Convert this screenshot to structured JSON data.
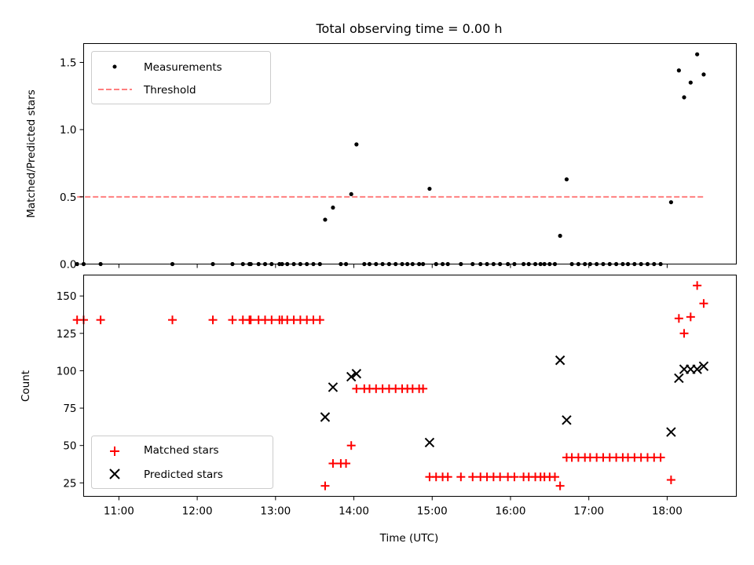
{
  "chart_data": [
    {
      "type": "scatter",
      "title": "Total observing time = 0.00 h",
      "ylabel": "Matched/Predicted stars",
      "xlabel": "",
      "xlim": [
        "10:33",
        "18:53"
      ],
      "ylim": [
        0,
        1.64
      ],
      "yticks": [
        0.0,
        0.5,
        1.0,
        1.5
      ],
      "ytick_labels": [
        "0.0",
        "0.5",
        "1.0",
        "1.5"
      ],
      "legend_position": "upper-left",
      "series": [
        {
          "name": "Measurements",
          "kind": "scatter",
          "color": "#000000",
          "marker": "dot",
          "points": [
            [
              "10:28",
              0
            ],
            [
              "10:33",
              0
            ],
            [
              "10:46",
              0
            ],
            [
              "11:41",
              0
            ],
            [
              "12:12",
              0
            ],
            [
              "12:27",
              0
            ],
            [
              "12:35",
              0
            ],
            [
              "12:40",
              0
            ],
            [
              "12:41",
              0
            ],
            [
              "12:47",
              0
            ],
            [
              "12:52",
              0
            ],
            [
              "12:57",
              0
            ],
            [
              "13:03",
              0
            ],
            [
              "13:05",
              0
            ],
            [
              "13:09",
              0
            ],
            [
              "13:14",
              0
            ],
            [
              "13:19",
              0
            ],
            [
              "13:24",
              0
            ],
            [
              "13:29",
              0
            ],
            [
              "13:34",
              0
            ],
            [
              "13:38",
              0.33
            ],
            [
              "13:44",
              0.42
            ],
            [
              "13:50",
              0
            ],
            [
              "13:54",
              0
            ],
            [
              "13:58",
              0.52
            ],
            [
              "14:02",
              0.89
            ],
            [
              "14:08",
              0
            ],
            [
              "14:12",
              0
            ],
            [
              "14:17",
              0
            ],
            [
              "14:22",
              0
            ],
            [
              "14:27",
              0
            ],
            [
              "14:32",
              0
            ],
            [
              "14:37",
              0
            ],
            [
              "14:41",
              0
            ],
            [
              "14:45",
              0
            ],
            [
              "14:50",
              0
            ],
            [
              "14:53",
              0
            ],
            [
              "14:58",
              0.56
            ],
            [
              "15:03",
              0
            ],
            [
              "15:08",
              0
            ],
            [
              "15:12",
              0
            ],
            [
              "15:22",
              0
            ],
            [
              "15:31",
              0
            ],
            [
              "15:37",
              0
            ],
            [
              "15:42",
              0
            ],
            [
              "15:47",
              0
            ],
            [
              "15:52",
              0
            ],
            [
              "15:58",
              0
            ],
            [
              "16:03",
              0
            ],
            [
              "16:10",
              0
            ],
            [
              "16:14",
              0
            ],
            [
              "16:19",
              0
            ],
            [
              "16:23",
              0
            ],
            [
              "16:26",
              0
            ],
            [
              "16:30",
              0
            ],
            [
              "16:34",
              0
            ],
            [
              "16:38",
              0.21
            ],
            [
              "16:43",
              0.63
            ],
            [
              "16:47",
              0
            ],
            [
              "16:52",
              0
            ],
            [
              "16:57",
              0
            ],
            [
              "17:01",
              0
            ],
            [
              "17:06",
              0
            ],
            [
              "17:11",
              0
            ],
            [
              "17:16",
              0
            ],
            [
              "17:21",
              0
            ],
            [
              "17:26",
              0
            ],
            [
              "17:30",
              0
            ],
            [
              "17:35",
              0
            ],
            [
              "17:40",
              0
            ],
            [
              "17:45",
              0
            ],
            [
              "17:50",
              0
            ],
            [
              "17:55",
              0
            ],
            [
              "18:03",
              0.46
            ],
            [
              "18:09",
              1.44
            ],
            [
              "18:13",
              1.24
            ],
            [
              "18:18",
              1.35
            ],
            [
              "18:23",
              1.56
            ],
            [
              "18:28",
              1.41
            ]
          ]
        },
        {
          "name": "Threshold",
          "kind": "line",
          "color": "#ff7f7f",
          "dash": true,
          "points": [
            [
              "10:28",
              0.5
            ],
            [
              "18:28",
              0.5
            ]
          ]
        }
      ]
    },
    {
      "type": "scatter",
      "title": "",
      "ylabel": "Count",
      "xlabel": "Time (UTC)",
      "xlim": [
        "10:33",
        "18:53"
      ],
      "ylim": [
        16,
        164
      ],
      "yticks": [
        25,
        50,
        75,
        100,
        125,
        150
      ],
      "ytick_labels": [
        "25",
        "50",
        "75",
        "100",
        "125",
        "150"
      ],
      "xticks": [
        "11:00",
        "12:00",
        "13:00",
        "14:00",
        "15:00",
        "16:00",
        "17:00",
        "18:00"
      ],
      "xtick_labels": [
        "11:00",
        "12:00",
        "13:00",
        "14:00",
        "15:00",
        "16:00",
        "17:00",
        "18:00"
      ],
      "legend_position": "lower-left",
      "series": [
        {
          "name": "Matched stars",
          "kind": "scatter",
          "color": "#ff0000",
          "marker": "plus",
          "points": [
            [
              "10:28",
              134
            ],
            [
              "10:33",
              134
            ],
            [
              "10:46",
              134
            ],
            [
              "11:41",
              134
            ],
            [
              "12:12",
              134
            ],
            [
              "12:27",
              134
            ],
            [
              "12:35",
              134
            ],
            [
              "12:40",
              134
            ],
            [
              "12:41",
              134
            ],
            [
              "12:47",
              134
            ],
            [
              "12:52",
              134
            ],
            [
              "12:57",
              134
            ],
            [
              "13:03",
              134
            ],
            [
              "13:05",
              134
            ],
            [
              "13:09",
              134
            ],
            [
              "13:14",
              134
            ],
            [
              "13:19",
              134
            ],
            [
              "13:24",
              134
            ],
            [
              "13:29",
              134
            ],
            [
              "13:34",
              134
            ],
            [
              "13:38",
              23
            ],
            [
              "13:44",
              38
            ],
            [
              "13:50",
              38
            ],
            [
              "13:54",
              38
            ],
            [
              "13:58",
              50
            ],
            [
              "14:02",
              88
            ],
            [
              "14:08",
              88
            ],
            [
              "14:12",
              88
            ],
            [
              "14:17",
              88
            ],
            [
              "14:22",
              88
            ],
            [
              "14:27",
              88
            ],
            [
              "14:32",
              88
            ],
            [
              "14:37",
              88
            ],
            [
              "14:41",
              88
            ],
            [
              "14:45",
              88
            ],
            [
              "14:50",
              88
            ],
            [
              "14:53",
              88
            ],
            [
              "14:58",
              29
            ],
            [
              "15:03",
              29
            ],
            [
              "15:08",
              29
            ],
            [
              "15:12",
              29
            ],
            [
              "15:22",
              29
            ],
            [
              "15:31",
              29
            ],
            [
              "15:37",
              29
            ],
            [
              "15:42",
              29
            ],
            [
              "15:47",
              29
            ],
            [
              "15:52",
              29
            ],
            [
              "15:58",
              29
            ],
            [
              "16:03",
              29
            ],
            [
              "16:10",
              29
            ],
            [
              "16:14",
              29
            ],
            [
              "16:19",
              29
            ],
            [
              "16:23",
              29
            ],
            [
              "16:26",
              29
            ],
            [
              "16:30",
              29
            ],
            [
              "16:34",
              29
            ],
            [
              "16:38",
              23
            ],
            [
              "16:43",
              42
            ],
            [
              "16:47",
              42
            ],
            [
              "16:52",
              42
            ],
            [
              "16:57",
              42
            ],
            [
              "17:01",
              42
            ],
            [
              "17:06",
              42
            ],
            [
              "17:11",
              42
            ],
            [
              "17:16",
              42
            ],
            [
              "17:21",
              42
            ],
            [
              "17:26",
              42
            ],
            [
              "17:30",
              42
            ],
            [
              "17:35",
              42
            ],
            [
              "17:40",
              42
            ],
            [
              "17:45",
              42
            ],
            [
              "17:50",
              42
            ],
            [
              "17:55",
              42
            ],
            [
              "18:03",
              27
            ],
            [
              "18:09",
              135
            ],
            [
              "18:13",
              125
            ],
            [
              "18:18",
              136
            ],
            [
              "18:23",
              157
            ],
            [
              "18:28",
              145
            ]
          ]
        },
        {
          "name": "Predicted stars",
          "kind": "scatter",
          "color": "#000000",
          "marker": "x",
          "points": [
            [
              "13:38",
              69
            ],
            [
              "13:44",
              89
            ],
            [
              "13:58",
              96
            ],
            [
              "14:02",
              98
            ],
            [
              "14:58",
              52
            ],
            [
              "16:38",
              107
            ],
            [
              "16:43",
              67
            ],
            [
              "18:03",
              59
            ],
            [
              "18:09",
              95
            ],
            [
              "18:13",
              101
            ],
            [
              "18:18",
              101
            ],
            [
              "18:23",
              101
            ],
            [
              "18:28",
              103
            ]
          ]
        }
      ]
    }
  ]
}
